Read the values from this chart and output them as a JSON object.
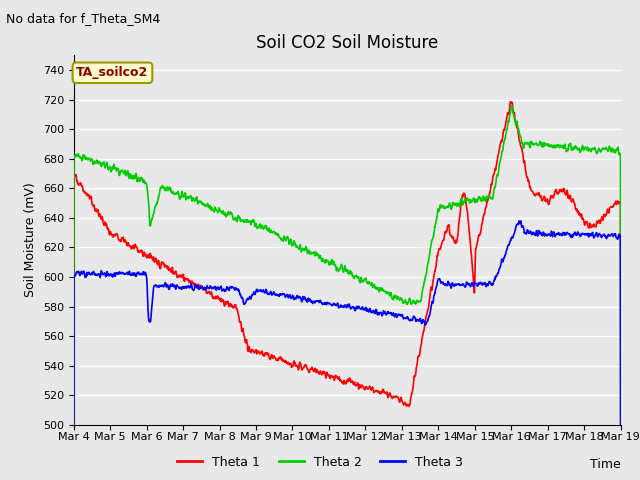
{
  "title": "Soil CO2 Soil Moisture",
  "no_data_text": "No data for f_Theta_SM4",
  "annotation_text": "TA_soilco2",
  "ylabel": "Soil Moisture (mV)",
  "xlabel": "Time",
  "ylim": [
    500,
    750
  ],
  "yticks": [
    500,
    520,
    540,
    560,
    580,
    600,
    620,
    640,
    660,
    680,
    700,
    720,
    740
  ],
  "x_labels": [
    "Mar 4",
    "Mar 5",
    "Mar 6",
    "Mar 7",
    "Mar 8",
    "Mar 9",
    "Mar 10",
    "Mar 11",
    "Mar 12",
    "Mar 13",
    "Mar 14",
    "Mar 15",
    "Mar 16",
    "Mar 17",
    "Mar 18",
    "Mar 19"
  ],
  "background_color": "#e8e8e8",
  "plot_bg_color": "#e8e8e8",
  "grid_color": "#ffffff",
  "line_colors": {
    "theta1": "#ff0000",
    "theta2": "#00cc00",
    "theta3": "#0000ff"
  },
  "legend_labels": [
    "Theta 1",
    "Theta 2",
    "Theta 3"
  ],
  "title_fontsize": 12,
  "axis_fontsize": 9,
  "tick_fontsize": 8,
  "annotation_fontsize": 9,
  "no_data_fontsize": 9
}
